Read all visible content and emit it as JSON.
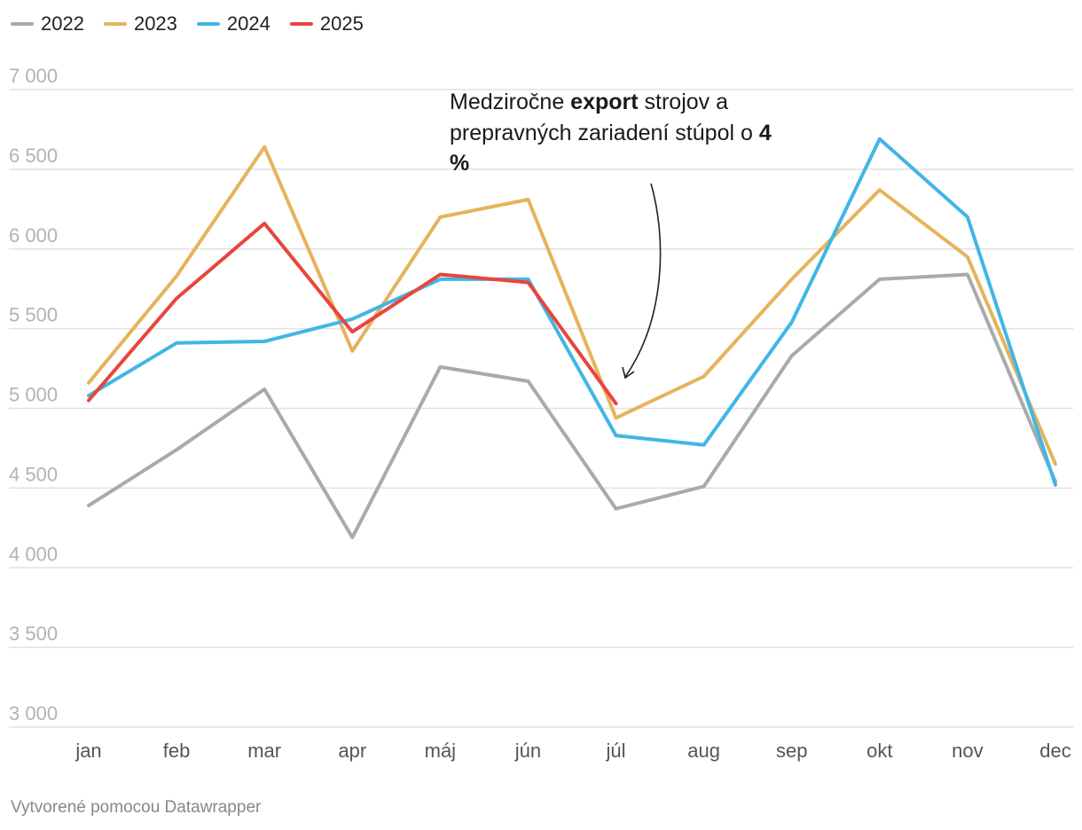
{
  "chart_data": {
    "type": "line",
    "categories": [
      "jan",
      "feb",
      "mar",
      "apr",
      "máj",
      "jún",
      "júl",
      "aug",
      "sep",
      "okt",
      "nov",
      "dec"
    ],
    "series": [
      {
        "name": "2022",
        "color": "#aaaaaa",
        "values": [
          4390,
          4740,
          5120,
          4190,
          5260,
          5170,
          4370,
          4510,
          5330,
          5810,
          5840,
          4540
        ]
      },
      {
        "name": "2023",
        "color": "#e6b35c",
        "values": [
          5160,
          5830,
          6640,
          5360,
          6200,
          6310,
          4940,
          5200,
          5810,
          6370,
          5950,
          4650
        ]
      },
      {
        "name": "2024",
        "color": "#41b6e6",
        "values": [
          5080,
          5410,
          5420,
          5560,
          5810,
          5810,
          4830,
          4770,
          5540,
          6690,
          6200,
          4520
        ]
      },
      {
        "name": "2025",
        "color": "#e8453c",
        "values": [
          5050,
          5690,
          6160,
          5480,
          5840,
          5790,
          5030,
          null,
          null,
          null,
          null,
          null
        ]
      }
    ],
    "ylim": [
      3000,
      7000
    ],
    "yticks": [
      3000,
      3500,
      4000,
      4500,
      5000,
      5500,
      6000,
      6500,
      7000
    ],
    "ytick_labels": [
      "3 000",
      "3 500",
      "4 000",
      "4 500",
      "5 000",
      "5 500",
      "6 000",
      "6 500",
      "7 000"
    ],
    "xlabel": "",
    "ylabel": "",
    "grid": true,
    "legend_position": "top-left",
    "annotation": {
      "line1_prefix": "Medziročne ",
      "line1_bold": "export",
      "line1_suffix": " strojov a",
      "line2_prefix": "prepravných zariadení stúpol o ",
      "line2_bold": "4",
      "line3_bold": "%",
      "points_to": "júl"
    }
  },
  "footer": {
    "credit": "Vytvorené pomocou Datawrapper"
  }
}
